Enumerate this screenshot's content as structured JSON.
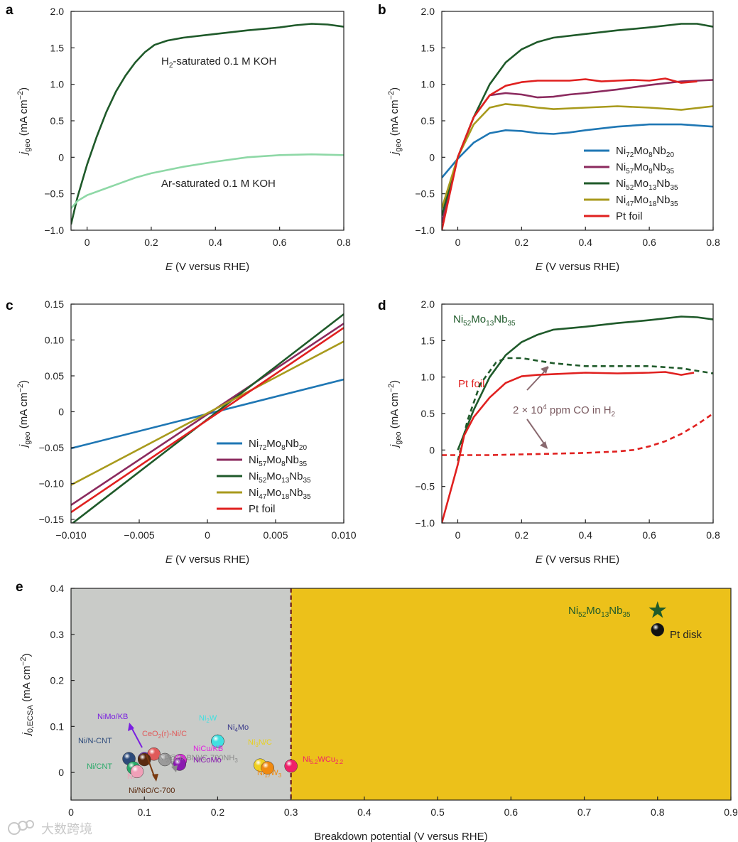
{
  "panels": {
    "a": {
      "label": "a"
    },
    "b": {
      "label": "b"
    },
    "c": {
      "label": "c"
    },
    "d": {
      "label": "d"
    },
    "e": {
      "label": "e"
    }
  },
  "chart_data": [
    {
      "id": "a",
      "type": "line",
      "xlabel": "E (V versus RHE)",
      "ylabel": "j_geo (mA cm−2)",
      "xlim": [
        -0.05,
        0.8
      ],
      "ylim": [
        -1.0,
        2.0
      ],
      "xticks": [
        "0",
        "0.2",
        "0.4",
        "0.6",
        "0.8"
      ],
      "yticks": [
        "−1.0",
        "−0.5",
        "0",
        "0.5",
        "1.0",
        "1.5",
        "2.0"
      ],
      "annotations": [
        "H2-saturated 0.1 M KOH",
        "Ar-saturated 0.1 M KOH"
      ],
      "series": [
        {
          "color": "#1f5a2a",
          "points": [
            [
              -0.05,
              -0.92
            ],
            [
              -0.03,
              -0.55
            ],
            [
              0.0,
              -0.1
            ],
            [
              0.03,
              0.28
            ],
            [
              0.06,
              0.62
            ],
            [
              0.09,
              0.9
            ],
            [
              0.12,
              1.12
            ],
            [
              0.15,
              1.3
            ],
            [
              0.18,
              1.44
            ],
            [
              0.21,
              1.54
            ],
            [
              0.25,
              1.6
            ],
            [
              0.3,
              1.64
            ],
            [
              0.4,
              1.69
            ],
            [
              0.5,
              1.74
            ],
            [
              0.6,
              1.78
            ],
            [
              0.65,
              1.81
            ],
            [
              0.7,
              1.83
            ],
            [
              0.75,
              1.82
            ],
            [
              0.8,
              1.79
            ]
          ]
        },
        {
          "color": "#8ed8a6",
          "points": [
            [
              -0.05,
              -0.7
            ],
            [
              -0.03,
              -0.6
            ],
            [
              0.0,
              -0.52
            ],
            [
              0.05,
              -0.44
            ],
            [
              0.1,
              -0.36
            ],
            [
              0.15,
              -0.28
            ],
            [
              0.2,
              -0.22
            ],
            [
              0.3,
              -0.13
            ],
            [
              0.4,
              -0.06
            ],
            [
              0.5,
              0.0
            ],
            [
              0.6,
              0.03
            ],
            [
              0.7,
              0.04
            ],
            [
              0.8,
              0.03
            ]
          ]
        }
      ]
    },
    {
      "id": "b",
      "type": "line",
      "xlabel": "E (V versus RHE)",
      "ylabel": "j_geo (mA cm−2)",
      "xlim": [
        -0.05,
        0.8
      ],
      "ylim": [
        -1.0,
        2.0
      ],
      "xticks": [
        "0",
        "0.2",
        "0.4",
        "0.6",
        "0.8"
      ],
      "yticks": [
        "−1.0",
        "−0.5",
        "0",
        "0.5",
        "1.0",
        "1.5",
        "2.0"
      ],
      "legend": "bottom-right",
      "series": [
        {
          "name": "Ni72Mo8Nb20",
          "color": "#1f77b4",
          "points": [
            [
              -0.05,
              -0.28
            ],
            [
              0.0,
              -0.02
            ],
            [
              0.05,
              0.2
            ],
            [
              0.1,
              0.33
            ],
            [
              0.15,
              0.37
            ],
            [
              0.2,
              0.36
            ],
            [
              0.25,
              0.33
            ],
            [
              0.3,
              0.32
            ],
            [
              0.35,
              0.34
            ],
            [
              0.4,
              0.37
            ],
            [
              0.5,
              0.42
            ],
            [
              0.6,
              0.45
            ],
            [
              0.7,
              0.45
            ],
            [
              0.8,
              0.42
            ]
          ]
        },
        {
          "name": "Ni57Mo8Nb35",
          "color": "#8b2a5e",
          "points": [
            [
              -0.05,
              -0.9
            ],
            [
              0.0,
              0.0
            ],
            [
              0.05,
              0.55
            ],
            [
              0.1,
              0.85
            ],
            [
              0.15,
              0.88
            ],
            [
              0.2,
              0.86
            ],
            [
              0.25,
              0.82
            ],
            [
              0.3,
              0.83
            ],
            [
              0.35,
              0.86
            ],
            [
              0.4,
              0.88
            ],
            [
              0.5,
              0.93
            ],
            [
              0.6,
              0.99
            ],
            [
              0.7,
              1.04
            ],
            [
              0.8,
              1.06
            ]
          ]
        },
        {
          "name": "Ni52Mo13Nb35",
          "color": "#1f5a2a",
          "points": [
            [
              -0.05,
              -0.8
            ],
            [
              0.0,
              0.0
            ],
            [
              0.05,
              0.55
            ],
            [
              0.1,
              1.0
            ],
            [
              0.15,
              1.3
            ],
            [
              0.2,
              1.48
            ],
            [
              0.25,
              1.58
            ],
            [
              0.3,
              1.64
            ],
            [
              0.4,
              1.69
            ],
            [
              0.5,
              1.74
            ],
            [
              0.6,
              1.78
            ],
            [
              0.7,
              1.83
            ],
            [
              0.75,
              1.83
            ],
            [
              0.8,
              1.79
            ]
          ]
        },
        {
          "name": "Ni47Mo18Nb35",
          "color": "#a89a1c",
          "points": [
            [
              -0.05,
              -0.7
            ],
            [
              0.0,
              0.0
            ],
            [
              0.05,
              0.45
            ],
            [
              0.1,
              0.68
            ],
            [
              0.15,
              0.73
            ],
            [
              0.2,
              0.71
            ],
            [
              0.25,
              0.68
            ],
            [
              0.3,
              0.66
            ],
            [
              0.4,
              0.68
            ],
            [
              0.5,
              0.7
            ],
            [
              0.6,
              0.68
            ],
            [
              0.7,
              0.65
            ],
            [
              0.8,
              0.7
            ]
          ]
        },
        {
          "name": "Pt foil",
          "color": "#e0201f",
          "points": [
            [
              -0.05,
              -1.0
            ],
            [
              0.0,
              0.0
            ],
            [
              0.05,
              0.55
            ],
            [
              0.1,
              0.85
            ],
            [
              0.15,
              0.98
            ],
            [
              0.2,
              1.03
            ],
            [
              0.25,
              1.05
            ],
            [
              0.3,
              1.05
            ],
            [
              0.35,
              1.05
            ],
            [
              0.4,
              1.07
            ],
            [
              0.45,
              1.04
            ],
            [
              0.5,
              1.05
            ],
            [
              0.55,
              1.06
            ],
            [
              0.6,
              1.05
            ],
            [
              0.65,
              1.08
            ],
            [
              0.7,
              1.02
            ],
            [
              0.75,
              1.04
            ]
          ]
        }
      ]
    },
    {
      "id": "c",
      "type": "line",
      "xlabel": "E (V versus RHE)",
      "ylabel": "j_geo (mA cm−2)",
      "xlim": [
        -0.01,
        0.01
      ],
      "ylim": [
        -0.155,
        0.15
      ],
      "xticks": [
        "−0.010",
        "−0.005",
        "0",
        "0.005",
        "0.010"
      ],
      "yticks": [
        "−0.15",
        "−0.10",
        "−0.05",
        "0",
        "0.05",
        "0.10",
        "0.15"
      ],
      "legend": "bottom-right",
      "series": [
        {
          "name": "Ni72Mo8Nb20",
          "color": "#1f77b4",
          "points": [
            [
              -0.01,
              -0.051
            ],
            [
              0.01,
              0.045
            ]
          ]
        },
        {
          "name": "Ni57Mo8Nb35",
          "color": "#8b2a5e",
          "points": [
            [
              -0.01,
              -0.13
            ],
            [
              0.01,
              0.123
            ]
          ]
        },
        {
          "name": "Ni52Mo13Nb35",
          "color": "#1f5a2a",
          "points": [
            [
              -0.01,
              -0.157
            ],
            [
              0.01,
              0.136
            ]
          ]
        },
        {
          "name": "Ni47Mo18Nb35",
          "color": "#a89a1c",
          "points": [
            [
              -0.01,
              -0.102
            ],
            [
              0.01,
              0.098
            ]
          ]
        },
        {
          "name": "Pt foil",
          "color": "#e0201f",
          "points": [
            [
              -0.01,
              -0.14
            ],
            [
              0.01,
              0.117
            ]
          ]
        }
      ]
    },
    {
      "id": "d",
      "type": "line",
      "xlabel": "E (V versus RHE)",
      "ylabel": "j_geo (mA cm−2)",
      "xlim": [
        -0.05,
        0.8
      ],
      "ylim": [
        -1.0,
        2.0
      ],
      "xticks": [
        "0",
        "0.2",
        "0.4",
        "0.6",
        "0.8"
      ],
      "yticks": [
        "−1.0",
        "−0.5",
        "0",
        "0.5",
        "1.0",
        "1.5",
        "2.0"
      ],
      "annotations": [
        "Ni52Mo13Nb35",
        "Pt foil",
        "2 × 10^4 ppm CO in H2"
      ],
      "series": [
        {
          "name": "Ni52Mo13Nb35",
          "color": "#1f5a2a",
          "dashed": false,
          "points": [
            [
              0.0,
              0.0
            ],
            [
              0.05,
              0.55
            ],
            [
              0.1,
              1.0
            ],
            [
              0.15,
              1.3
            ],
            [
              0.2,
              1.48
            ],
            [
              0.25,
              1.58
            ],
            [
              0.3,
              1.65
            ],
            [
              0.4,
              1.69
            ],
            [
              0.5,
              1.74
            ],
            [
              0.6,
              1.78
            ],
            [
              0.7,
              1.83
            ],
            [
              0.75,
              1.82
            ],
            [
              0.8,
              1.79
            ]
          ]
        },
        {
          "name": "Ni52Mo13Nb35 + CO",
          "color": "#1f5a2a",
          "dashed": true,
          "points": [
            [
              0.0,
              -0.15
            ],
            [
              0.03,
              0.4
            ],
            [
              0.07,
              0.9
            ],
            [
              0.12,
              1.2
            ],
            [
              0.15,
              1.26
            ],
            [
              0.2,
              1.26
            ],
            [
              0.3,
              1.19
            ],
            [
              0.4,
              1.15
            ],
            [
              0.5,
              1.15
            ],
            [
              0.6,
              1.15
            ],
            [
              0.7,
              1.12
            ],
            [
              0.8,
              1.05
            ]
          ]
        },
        {
          "name": "Pt foil",
          "color": "#e0201f",
          "dashed": false,
          "points": [
            [
              -0.05,
              -1.0
            ],
            [
              0.0,
              -0.2
            ],
            [
              0.02,
              0.2
            ],
            [
              0.05,
              0.45
            ],
            [
              0.1,
              0.72
            ],
            [
              0.15,
              0.92
            ],
            [
              0.2,
              1.01
            ],
            [
              0.25,
              1.03
            ],
            [
              0.3,
              1.04
            ],
            [
              0.4,
              1.06
            ],
            [
              0.5,
              1.05
            ],
            [
              0.6,
              1.06
            ],
            [
              0.65,
              1.07
            ],
            [
              0.7,
              1.03
            ],
            [
              0.74,
              1.06
            ]
          ]
        },
        {
          "name": "Pt foil + CO",
          "color": "#e0201f",
          "dashed": true,
          "points": [
            [
              -0.05,
              -0.07
            ],
            [
              0.1,
              -0.07
            ],
            [
              0.2,
              -0.06
            ],
            [
              0.3,
              -0.05
            ],
            [
              0.4,
              -0.04
            ],
            [
              0.5,
              -0.02
            ],
            [
              0.55,
              0.0
            ],
            [
              0.6,
              0.05
            ],
            [
              0.65,
              0.12
            ],
            [
              0.7,
              0.22
            ],
            [
              0.75,
              0.35
            ],
            [
              0.8,
              0.5
            ]
          ]
        }
      ]
    },
    {
      "id": "e",
      "type": "scatter",
      "xlabel": "Breakdown potential (V versus RHE)",
      "ylabel": "j0,ECSA (mA cm−2)",
      "xlim": [
        0,
        0.9
      ],
      "ylim": [
        -0.06,
        0.4
      ],
      "xticks": [
        "0",
        "0.1",
        "0.2",
        "0.3",
        "0.4",
        "0.5",
        "0.6",
        "0.7",
        "0.8",
        "0.9"
      ],
      "yticks": [
        "0",
        "0.1",
        "0.2",
        "0.3",
        "0.4"
      ],
      "regions": [
        {
          "from": 0,
          "to": 0.3,
          "color": "#c9cbc8"
        },
        {
          "from": 0.3,
          "to": 0.9,
          "color": "#ecc11a"
        }
      ],
      "divider_x": 0.3,
      "points": [
        {
          "label": "Ni52Mo13Nb35",
          "x": 0.8,
          "y": 0.352,
          "color": "#1f5a2a",
          "marker": "star"
        },
        {
          "label": "Pt disk",
          "x": 0.8,
          "y": 0.31,
          "color": "#111111",
          "marker": "sphere"
        },
        {
          "label": "NiMo/KB",
          "x": 0.1,
          "y": 0.03,
          "color": "#7a1fe0",
          "marker": "sphere"
        },
        {
          "label": "CeO2(r)-Ni/C",
          "x": 0.113,
          "y": 0.04,
          "color": "#e05a5a",
          "marker": "sphere"
        },
        {
          "label": "Ni/N-CNT",
          "x": 0.079,
          "y": 0.03,
          "color": "#2c4a7a",
          "marker": "sphere"
        },
        {
          "label": "Ni/CNT",
          "x": 0.085,
          "y": 0.01,
          "color": "#2aaa6a",
          "marker": "sphere"
        },
        {
          "label": "Ni",
          "x": 0.09,
          "y": 0.002,
          "color": "#f0a0b8",
          "marker": "sphere"
        },
        {
          "label": "Ni/NiO/C-700",
          "x": 0.1,
          "y": 0.028,
          "color": "#5a2a10",
          "marker": "sphere"
        },
        {
          "label": "Ni3@(h-BN)/C-700NH3",
          "x": 0.128,
          "y": 0.028,
          "color": "#9a9a9a",
          "marker": "sphere"
        },
        {
          "label": "NiCu/KB",
          "x": 0.149,
          "y": 0.026,
          "color": "#e020e0",
          "marker": "sphere"
        },
        {
          "label": "NiCoMo",
          "x": 0.148,
          "y": 0.018,
          "color": "#8a1ab0",
          "marker": "sphere"
        },
        {
          "label": "Ni4Mo",
          "x": 0.2,
          "y": 0.068,
          "color": "#3a3a8a",
          "marker": "sphere"
        },
        {
          "label": "Ni2W",
          "x": 0.2,
          "y": 0.068,
          "color": "#40e0e0",
          "marker": "sphere"
        },
        {
          "label": "Ni3N/C",
          "x": 0.258,
          "y": 0.016,
          "color": "#f0d020",
          "marker": "sphere"
        },
        {
          "label": "Ni17W3",
          "x": 0.268,
          "y": 0.01,
          "color": "#f08a10",
          "marker": "sphere"
        },
        {
          "label": "Ni5.2WCu2.2",
          "x": 0.3,
          "y": 0.014,
          "color": "#f0206a",
          "marker": "sphere"
        }
      ]
    }
  ],
  "watermark": "大数跨境"
}
